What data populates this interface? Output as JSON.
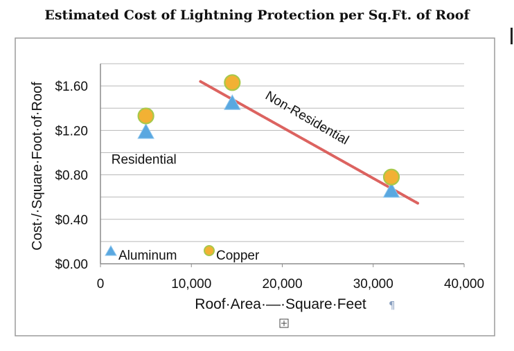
{
  "title": "Estimated Cost of Lightning Protection per Sq.Ft. of Roof",
  "chart_data": {
    "type": "scatter",
    "xlabel": "Roof·Area·—·Square·Feet",
    "ylabel": "Cost·/·Square·Foot·of·Roof",
    "xlim": [
      0,
      40000
    ],
    "ylim": [
      0,
      1.8
    ],
    "x_ticks": [
      "0",
      "10,000",
      "20,000",
      "30,000",
      "40,000"
    ],
    "y_ticks": [
      "$0.00",
      "$0.40",
      "$0.80",
      "$1.20",
      "$1.60"
    ],
    "grid": true,
    "legend_position": "bottom-left",
    "series": [
      {
        "name": "Aluminum",
        "marker": "triangle",
        "color": "#5aa8e0",
        "points": [
          {
            "x": 5000,
            "y": 1.18
          },
          {
            "x": 14500,
            "y": 1.44
          },
          {
            "x": 32000,
            "y": 0.65
          }
        ]
      },
      {
        "name": "Copper",
        "marker": "circle",
        "color": "#f2b134",
        "points": [
          {
            "x": 5000,
            "y": 1.33
          },
          {
            "x": 14500,
            "y": 1.63
          },
          {
            "x": 32000,
            "y": 0.78
          }
        ]
      }
    ],
    "trendline": {
      "color": "#d9534f",
      "from": {
        "x": 11000,
        "y": 1.64
      },
      "to": {
        "x": 35000,
        "y": 0.54
      }
    },
    "annotations": [
      {
        "text": "Residential",
        "x": 1200,
        "y": 0.9
      },
      {
        "text": "Non-Residential",
        "x": 22500,
        "y": 1.28,
        "angle": 30
      }
    ]
  }
}
